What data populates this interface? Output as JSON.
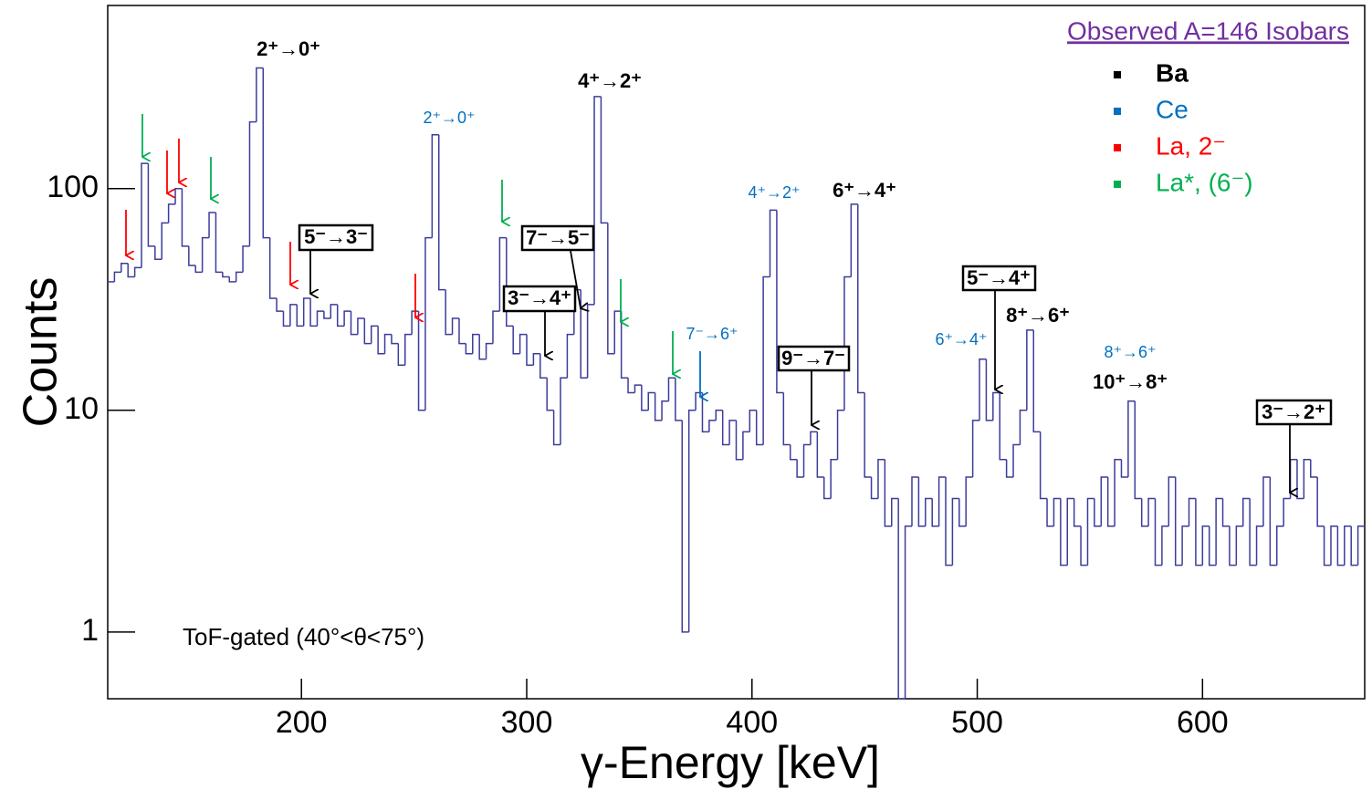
{
  "chart_data": {
    "type": "histogram",
    "xlabel": "γ-Energy [keV]",
    "ylabel": "Counts",
    "log_y": true,
    "color": "#3c3c9c",
    "xlim": [
      114,
      672
    ],
    "ylim": [
      0.5,
      670
    ],
    "xticks": [
      200,
      300,
      400,
      500,
      600
    ],
    "yticks": [
      1,
      10,
      100
    ],
    "bins": [
      114,
      117,
      120,
      123,
      126,
      129,
      132,
      135,
      138,
      141,
      144,
      147,
      150,
      153,
      156,
      159,
      162,
      165,
      168,
      171,
      174,
      177,
      180,
      183,
      186,
      189,
      192,
      195,
      198,
      201,
      204,
      207,
      210,
      213,
      216,
      219,
      222,
      225,
      228,
      231,
      234,
      237,
      240,
      243,
      246,
      249,
      252,
      255,
      258,
      261,
      264,
      267,
      270,
      273,
      276,
      279,
      282,
      285,
      288,
      291,
      294,
      297,
      300,
      303,
      306,
      309,
      312,
      315,
      318,
      321,
      324,
      327,
      330,
      333,
      336,
      339,
      342,
      345,
      348,
      351,
      354,
      357,
      360,
      363,
      366,
      369,
      372,
      375,
      378,
      381,
      384,
      387,
      390,
      393,
      396,
      399,
      402,
      405,
      408,
      411,
      414,
      417,
      420,
      423,
      426,
      429,
      432,
      435,
      438,
      441,
      444,
      447,
      450,
      453,
      456,
      459,
      462,
      465,
      468,
      471,
      474,
      477,
      480,
      483,
      486,
      489,
      492,
      495,
      498,
      501,
      504,
      507,
      510,
      513,
      516,
      519,
      522,
      525,
      528,
      531,
      534,
      537,
      540,
      543,
      546,
      549,
      552,
      555,
      558,
      561,
      564,
      567,
      570,
      573,
      576,
      579,
      582,
      585,
      588,
      591,
      594,
      597,
      600,
      603,
      606,
      609,
      612,
      615,
      618,
      621,
      624,
      627,
      630,
      633,
      636,
      639,
      642,
      645,
      648,
      651,
      654,
      657,
      660,
      663,
      666,
      669,
      672
    ],
    "values": [
      38,
      42,
      46,
      40,
      44,
      130,
      55,
      48,
      70,
      85,
      100,
      55,
      45,
      42,
      60,
      78,
      42,
      40,
      38,
      42,
      55,
      200,
      350,
      60,
      32,
      28,
      24,
      30,
      24,
      32,
      24,
      28,
      26,
      30,
      24,
      28,
      22,
      26,
      20,
      24,
      18,
      22,
      20,
      16,
      22,
      28,
      10,
      60,
      175,
      35,
      22,
      26,
      20,
      18,
      22,
      17,
      20,
      28,
      60,
      24,
      18,
      22,
      16,
      18,
      14,
      10,
      7,
      14,
      22,
      35,
      14,
      30,
      260,
      70,
      18,
      28,
      14,
      12,
      13,
      10,
      12,
      9,
      11,
      14,
      9,
      1,
      10,
      12,
      8,
      9,
      10,
      7,
      9,
      6,
      8,
      10,
      7,
      40,
      80,
      12,
      7,
      6,
      5,
      7,
      8,
      5,
      4,
      6,
      10,
      40,
      85,
      12,
      5,
      4,
      6,
      3,
      4,
      0,
      3,
      5,
      3,
      4,
      3,
      5,
      2,
      4,
      3,
      5,
      9,
      17,
      9,
      12,
      6,
      5,
      7,
      10,
      23,
      8,
      4,
      3,
      4,
      2,
      4,
      3,
      2,
      4,
      3,
      5,
      3,
      6,
      5,
      11,
      4,
      3,
      4,
      2,
      3,
      5,
      2,
      3,
      4,
      2,
      3,
      2,
      4,
      3,
      2,
      3,
      4,
      2,
      3,
      5,
      2,
      3,
      4,
      6,
      4,
      6,
      5,
      3,
      2,
      3,
      2,
      3,
      2,
      3
    ],
    "legend_title": "Observed A=146 Isobars",
    "legend": [
      {
        "name": "Ba",
        "color": "#000000"
      },
      {
        "name": "Ce",
        "color": "#0070c0"
      },
      {
        "name": "La, 2⁻",
        "color": "#ff0000"
      },
      {
        "name": "La*, (6⁻)",
        "color": "#00b050"
      }
    ],
    "note": "ToF-gated  (40°<θ<75°)",
    "annotations": [
      "2⁺→0⁺",
      "4⁺→2⁺",
      "6⁺→4⁺",
      "8⁺→6⁺",
      "10⁺→8⁺",
      "2⁺→0⁺",
      "4⁺→2⁺",
      "7⁻→6⁺",
      "6⁺→4⁺",
      "8⁺→6⁺",
      "5⁻→3⁻",
      "7⁻→5⁻",
      "3⁻→4⁺",
      "9⁻→7⁻",
      "5⁻→4⁺",
      "3⁻→2⁺"
    ]
  }
}
